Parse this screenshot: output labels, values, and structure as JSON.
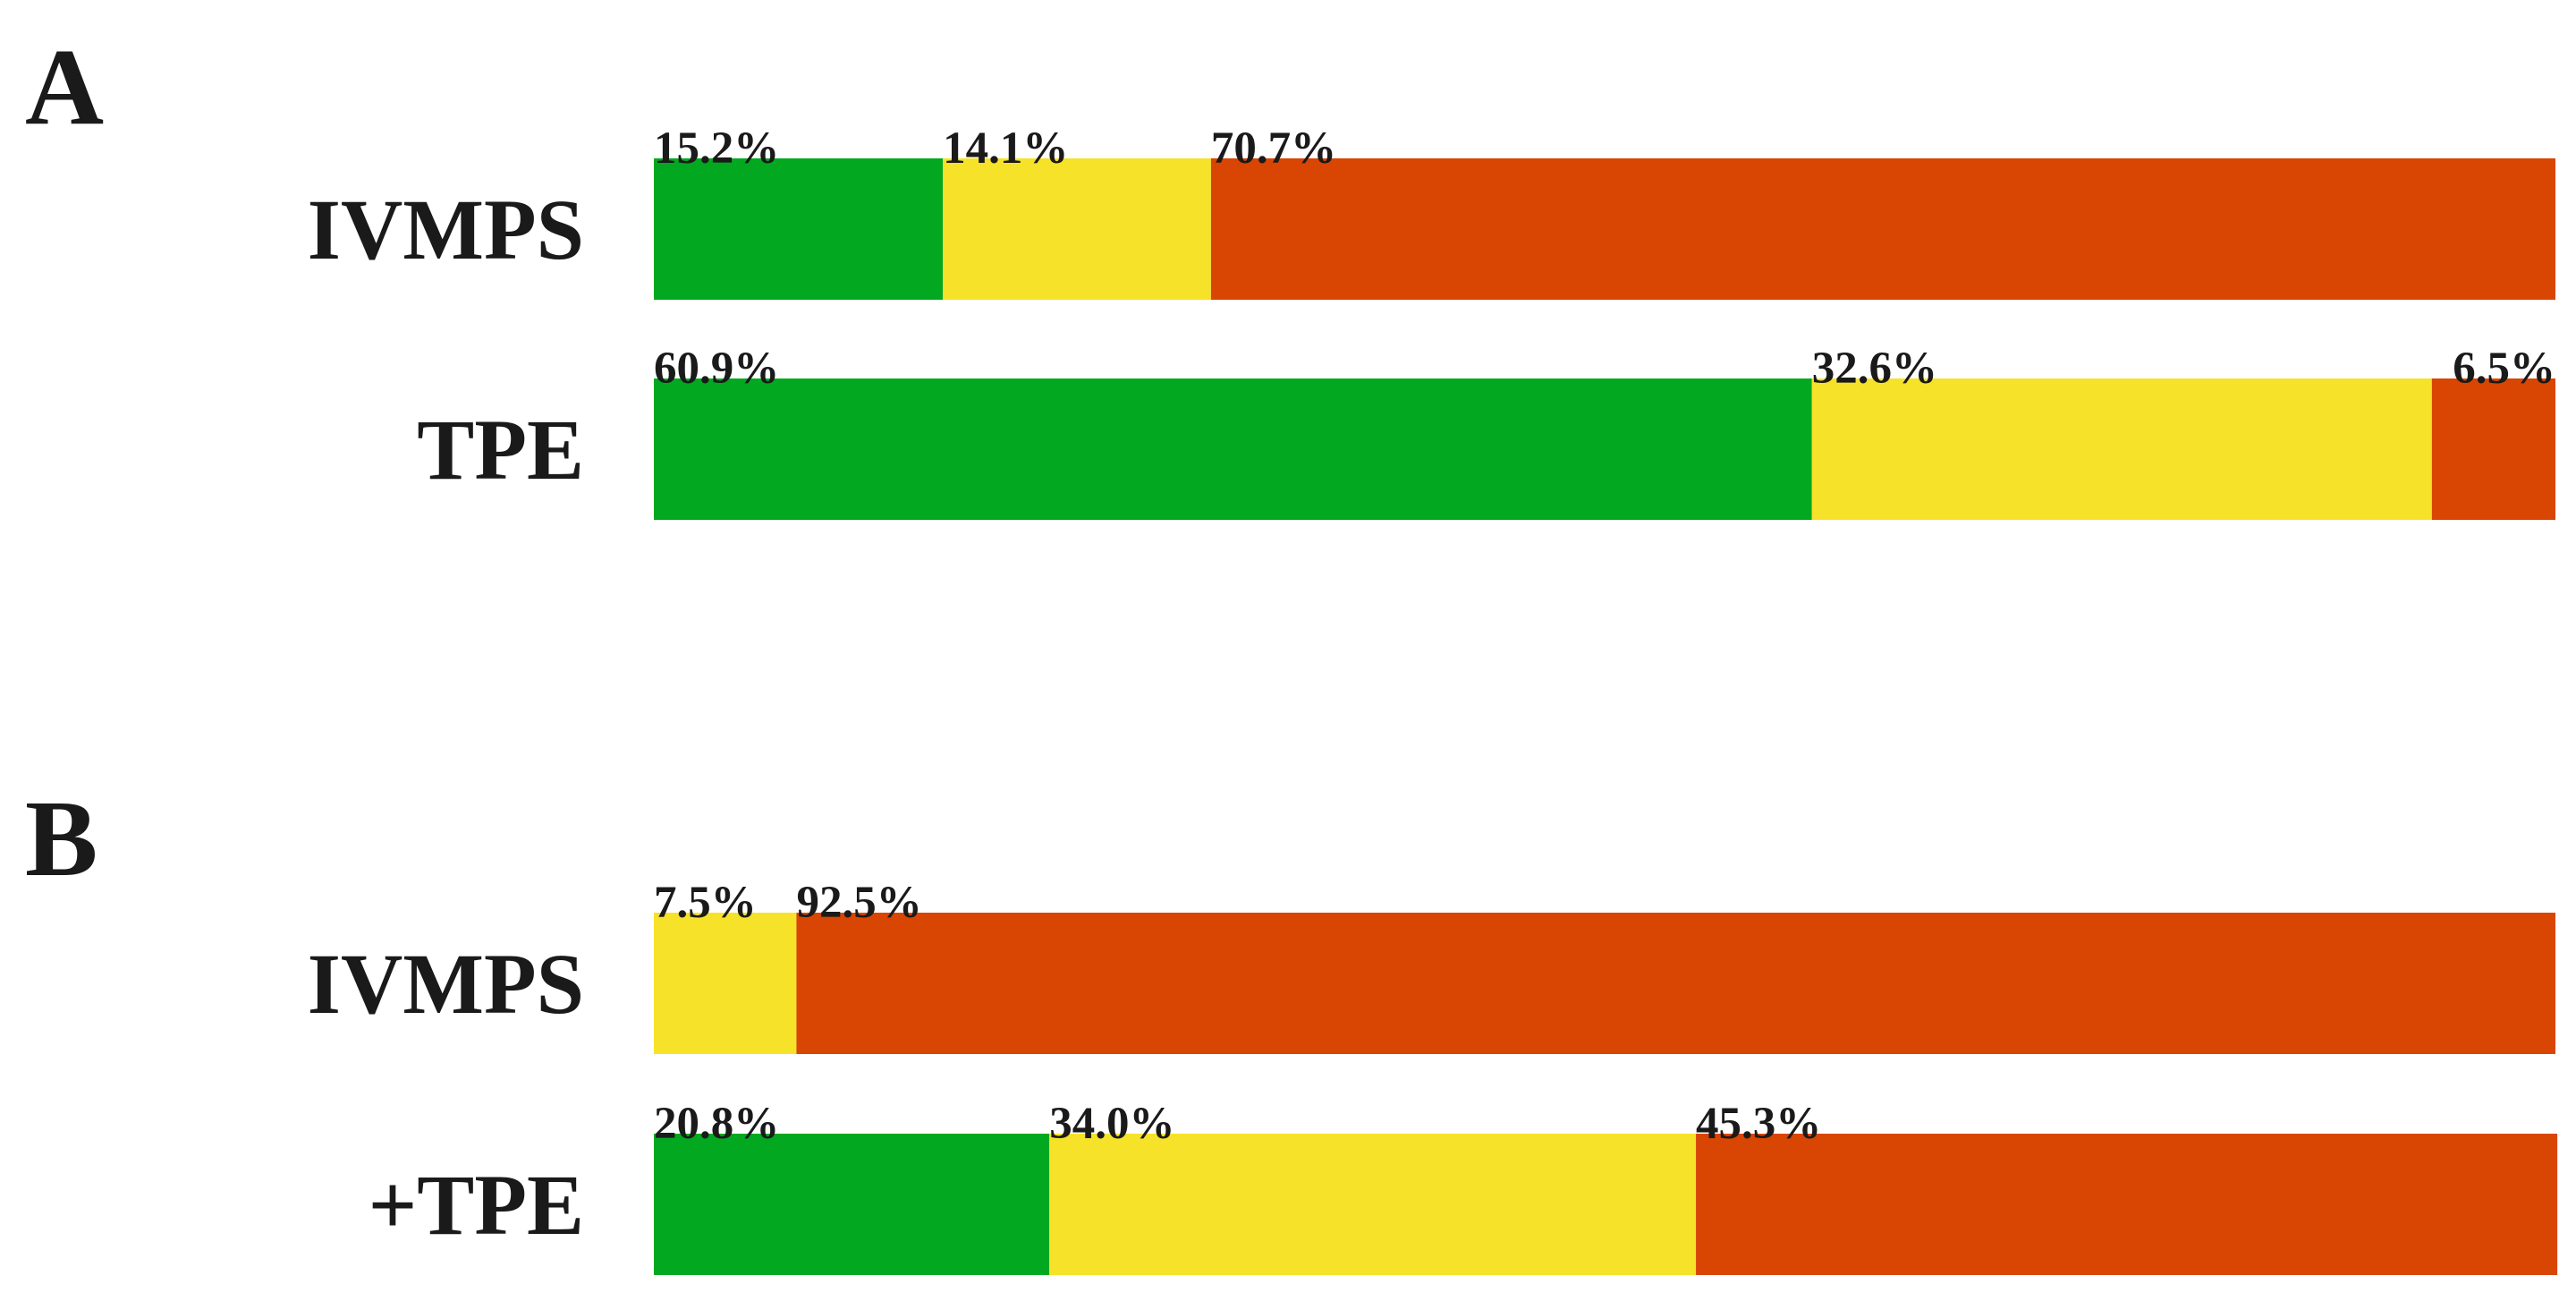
{
  "chart_data": [
    {
      "type": "bar",
      "orientation": "horizontal",
      "stacked": true,
      "normalized_percent": true,
      "panel": "A",
      "categories": [
        "IVMPS",
        "TPE"
      ],
      "series": [
        {
          "color": "#02a820",
          "values": [
            15.2,
            60.9
          ]
        },
        {
          "color": "#f6e229",
          "values": [
            14.1,
            32.6
          ]
        },
        {
          "color": "#d94502",
          "values": [
            70.7,
            6.5
          ]
        }
      ],
      "value_labels": [
        [
          "15.2%",
          "14.1%",
          "70.7%"
        ],
        [
          "60.9%",
          "32.6%",
          "6.5%"
        ]
      ],
      "xlim": [
        0,
        100
      ],
      "grid": false,
      "legend": "none"
    },
    {
      "type": "bar",
      "orientation": "horizontal",
      "stacked": true,
      "normalized_percent": true,
      "panel": "B",
      "categories": [
        "IVMPS",
        "+TPE"
      ],
      "series": [
        {
          "color": "#02a820",
          "values": [
            0,
            20.8
          ]
        },
        {
          "color": "#f6e229",
          "values": [
            7.5,
            34.0
          ]
        },
        {
          "color": "#d94502",
          "values": [
            92.5,
            45.3
          ]
        }
      ],
      "value_labels": [
        [
          "",
          "7.5%",
          "92.5%"
        ],
        [
          "20.8%",
          "34.0%",
          "45.3%"
        ]
      ],
      "xlim": [
        0,
        100
      ],
      "grid": false,
      "legend": "none"
    }
  ]
}
